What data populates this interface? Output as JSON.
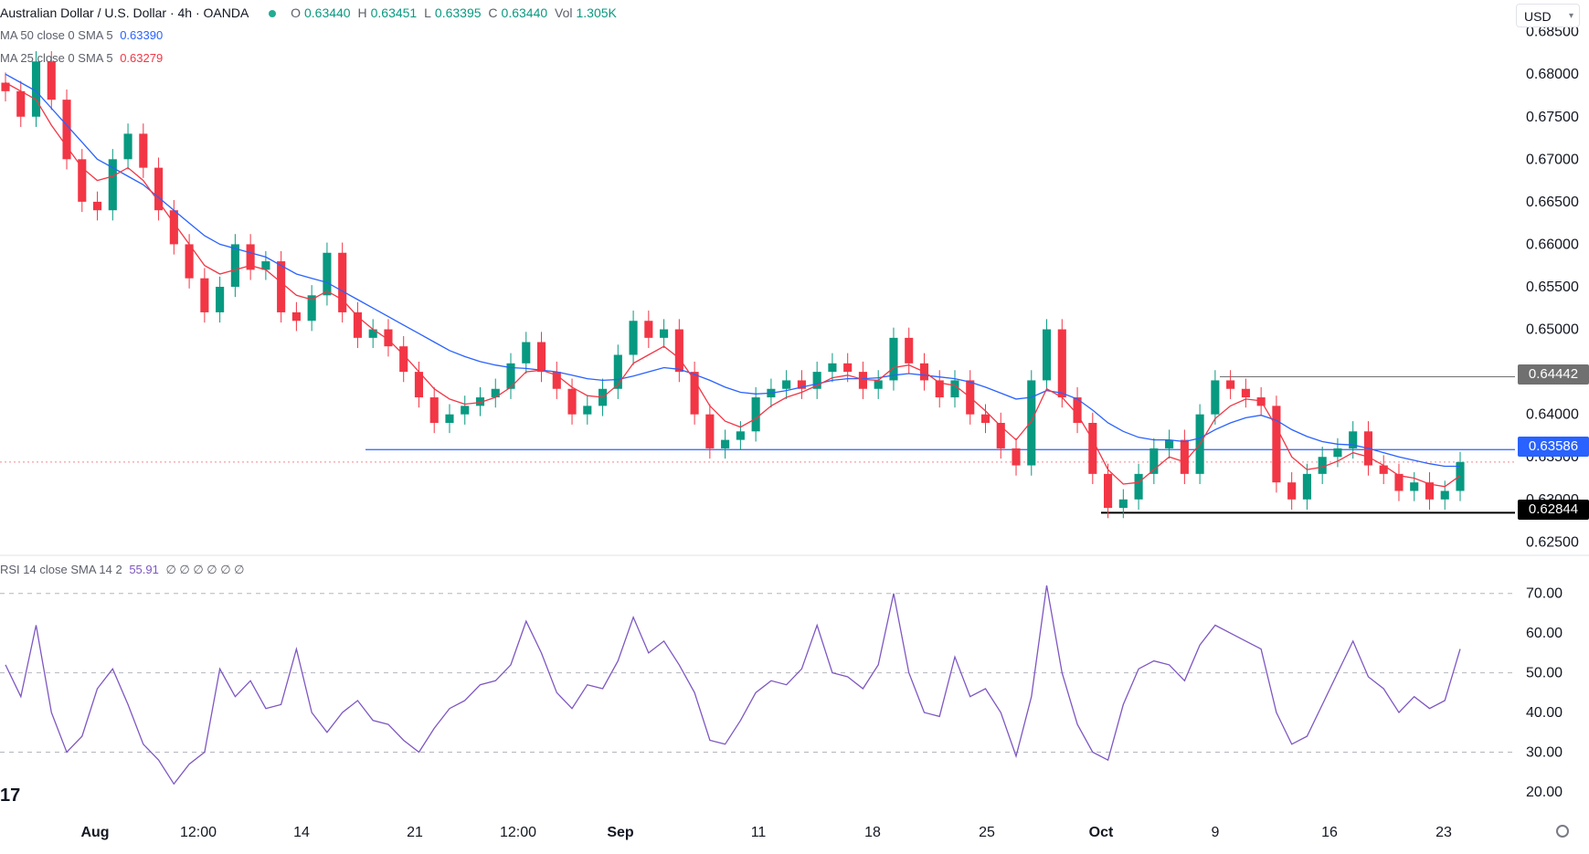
{
  "header": {
    "symbol_title": "Australian Dollar / U.S. Dollar · 4h · OANDA",
    "ohlc": [
      {
        "label": "O",
        "value": "0.63440"
      },
      {
        "label": "H",
        "value": "0.63451"
      },
      {
        "label": "L",
        "value": "0.63395"
      },
      {
        "label": "C",
        "value": "0.63440"
      }
    ],
    "volume_label": "Vol",
    "volume_value": "1.305K",
    "currency": "USD"
  },
  "indicators": {
    "ma50_label": "MA 50 close 0 SMA 5",
    "ma50_value": "0.63390",
    "ma25_label": "MA 25 close 0 SMA 5",
    "ma25_value": "0.63279",
    "rsi_label": "RSI 14 close SMA 14 2",
    "rsi_value": "55.91",
    "rsi_extras": "∅ ∅ ∅ ∅ ∅ ∅"
  },
  "colors": {
    "up": "#089981",
    "down": "#f23645",
    "ma50": "#2962ff",
    "ma25": "#f23645",
    "rsi": "#7e57c2",
    "level_blue": "#2962ff",
    "tag_grey": "#707070",
    "tag_black": "#000000"
  },
  "price_tags": [
    {
      "label": "0.64442",
      "color": "#707070"
    },
    {
      "label": "0.63586",
      "color": "#2962ff"
    },
    {
      "label": "0.62844",
      "color": "#000000"
    }
  ],
  "chart_data": [
    {
      "type": "line",
      "name": "price",
      "y_axis_ticks": [
        "0.68500",
        "0.68000",
        "0.67500",
        "0.67000",
        "0.66500",
        "0.66000",
        "0.65500",
        "0.65000",
        "0.64500",
        "0.64000",
        "0.63500",
        "0.63000",
        "0.62500"
      ],
      "ylim": [
        0.6245,
        0.6855
      ],
      "x_tick_labels": [
        "Aug",
        "12:00",
        "14",
        "21",
        "12:00",
        "Sep",
        "11",
        "18",
        "25",
        "Oct",
        "9",
        "16",
        "23"
      ],
      "series": [
        {
          "values": [
            0.678,
            0.675,
            0.6815,
            0.677,
            0.67,
            0.665,
            0.664,
            0.67,
            0.673,
            0.669,
            0.664,
            0.66,
            0.656,
            0.652,
            0.655,
            0.66,
            0.657,
            0.658,
            0.652,
            0.651,
            0.654,
            0.659,
            0.652,
            0.649,
            0.65,
            0.648,
            0.645,
            0.642,
            0.639,
            0.64,
            0.641,
            0.642,
            0.643,
            0.646,
            0.6485,
            0.645,
            0.643,
            0.64,
            0.641,
            0.643,
            0.647,
            0.651,
            0.649,
            0.65,
            0.645,
            0.64,
            0.636,
            0.637,
            0.638,
            0.642,
            0.643,
            0.644,
            0.643,
            0.645,
            0.646,
            0.645,
            0.643,
            0.644,
            0.649,
            0.646,
            0.644,
            0.642,
            0.644,
            0.64,
            0.639,
            0.636,
            0.634,
            0.644,
            0.65,
            0.642,
            0.639,
            0.633,
            0.629,
            0.63,
            0.633,
            0.636,
            0.637,
            0.633,
            0.64,
            0.644,
            0.643,
            0.642,
            0.641,
            0.632,
            0.63,
            0.633,
            0.635,
            0.636,
            0.638,
            0.634,
            0.633,
            0.631,
            0.632,
            0.63,
            0.631,
            0.6344
          ]
        },
        {
          "name": "MA 50",
          "values": [
            0.68,
            0.679,
            0.678,
            0.676,
            0.674,
            0.672,
            0.67,
            0.669,
            0.668,
            0.667,
            0.6655,
            0.664,
            0.6625,
            0.661,
            0.66,
            0.6595,
            0.659,
            0.6585,
            0.6575,
            0.6565,
            0.656,
            0.6555,
            0.6545,
            0.6535,
            0.6525,
            0.6515,
            0.6505,
            0.6495,
            0.6485,
            0.6475,
            0.6468,
            0.6462,
            0.6458,
            0.6455,
            0.6454,
            0.6452,
            0.645,
            0.6446,
            0.6442,
            0.644,
            0.6441,
            0.6445,
            0.645,
            0.6455,
            0.6453,
            0.6447,
            0.644,
            0.6432,
            0.6426,
            0.6424,
            0.6425,
            0.6428,
            0.6432,
            0.6436,
            0.644,
            0.6442,
            0.6442,
            0.6443,
            0.6446,
            0.6448,
            0.6446,
            0.6444,
            0.6442,
            0.6438,
            0.6432,
            0.6425,
            0.6418,
            0.642,
            0.6428,
            0.6425,
            0.6418,
            0.6405,
            0.639,
            0.638,
            0.6373,
            0.637,
            0.637,
            0.6368,
            0.6372,
            0.6382,
            0.639,
            0.6396,
            0.6399,
            0.6393,
            0.6382,
            0.6374,
            0.6368,
            0.6365,
            0.6364,
            0.636,
            0.6355,
            0.635,
            0.6346,
            0.6342,
            0.6339,
            0.6339
          ]
        },
        {
          "name": "MA 25",
          "values": [
            0.679,
            0.678,
            0.677,
            0.674,
            0.6715,
            0.669,
            0.6675,
            0.668,
            0.669,
            0.6675,
            0.665,
            0.6625,
            0.66,
            0.6575,
            0.6565,
            0.657,
            0.6575,
            0.657,
            0.6555,
            0.654,
            0.6535,
            0.6545,
            0.6535,
            0.6515,
            0.65,
            0.6488,
            0.647,
            0.645,
            0.643,
            0.6418,
            0.6412,
            0.6414,
            0.642,
            0.6432,
            0.645,
            0.6452,
            0.6446,
            0.6432,
            0.6422,
            0.642,
            0.6435,
            0.646,
            0.647,
            0.648,
            0.6466,
            0.644,
            0.641,
            0.6392,
            0.6385,
            0.6395,
            0.641,
            0.642,
            0.6426,
            0.6434,
            0.6443,
            0.6446,
            0.6441,
            0.644,
            0.6455,
            0.6458,
            0.645,
            0.6437,
            0.6434,
            0.642,
            0.6404,
            0.6386,
            0.637,
            0.6392,
            0.643,
            0.642,
            0.64,
            0.637,
            0.6335,
            0.6318,
            0.632,
            0.6335,
            0.635,
            0.6344,
            0.6365,
            0.6395,
            0.641,
            0.6418,
            0.6416,
            0.6385,
            0.635,
            0.6335,
            0.6338,
            0.6345,
            0.6355,
            0.635,
            0.634,
            0.6328,
            0.6325,
            0.6318,
            0.6315,
            0.6328
          ]
        }
      ]
    },
    {
      "type": "line",
      "name": "RSI",
      "y_axis_ticks": [
        "70.00",
        "60.00",
        "50.00",
        "40.00",
        "30.00",
        "20.00"
      ],
      "ylim": [
        17,
        75
      ],
      "series": [
        {
          "values": [
            52,
            44,
            62,
            40,
            30,
            34,
            46,
            51,
            42,
            32,
            28,
            22,
            27,
            30,
            51,
            44,
            48,
            41,
            42,
            56,
            40,
            35,
            40,
            43,
            38,
            37,
            33,
            30,
            36,
            41,
            43,
            47,
            48,
            52,
            63,
            55,
            45,
            41,
            47,
            46,
            53,
            64,
            55,
            58,
            52,
            45,
            33,
            32,
            38,
            45,
            48,
            47,
            51,
            62,
            50,
            49,
            46,
            52,
            70,
            50,
            40,
            39,
            54,
            44,
            46,
            40,
            29,
            44,
            72,
            50,
            37,
            30,
            28,
            42,
            51,
            53,
            52,
            48,
            57,
            62,
            60,
            58,
            56,
            40,
            32,
            34,
            42,
            50,
            58,
            49,
            46,
            40,
            44,
            41,
            43,
            56
          ]
        }
      ]
    }
  ]
}
